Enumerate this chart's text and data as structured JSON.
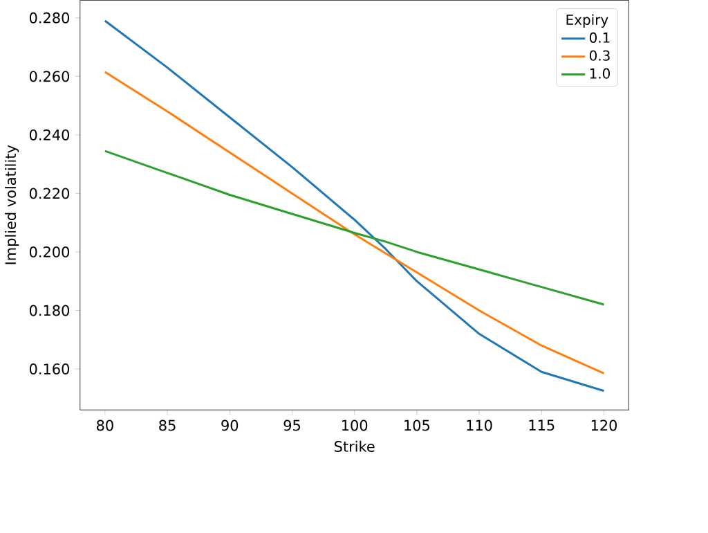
{
  "chart_data": {
    "type": "line",
    "xlabel": "Strike",
    "ylabel": "Implied volatility",
    "legend_title": "Expiry",
    "legend": "top right",
    "grid": false,
    "marker": "none",
    "line_style": "solid",
    "x": [
      80,
      85,
      90,
      95,
      100,
      102.5,
      105,
      110,
      115,
      120
    ],
    "series": [
      {
        "name": "0.1",
        "color": "#1f77b4",
        "values": [
          0.279,
          0.263,
          0.246,
          0.229,
          0.211,
          0.201,
          0.19,
          0.172,
          0.159,
          0.1525
        ]
      },
      {
        "name": "0.3",
        "color": "#ff7f0e",
        "values": [
          0.2615,
          0.248,
          0.234,
          0.22,
          0.206,
          0.1995,
          0.193,
          0.18,
          0.168,
          0.1585
        ]
      },
      {
        "name": "1.0",
        "color": "#2ca02c",
        "values": [
          0.2345,
          0.227,
          0.2195,
          0.213,
          0.2065,
          0.2035,
          0.2,
          0.194,
          0.188,
          0.182
        ]
      }
    ],
    "xlim": [
      78,
      122
    ],
    "ylim": [
      0.146,
      0.286
    ],
    "xticks": [
      80,
      85,
      90,
      95,
      100,
      105,
      110,
      115,
      120
    ],
    "yticks": [
      {
        "value": 0.16,
        "label": "0.160"
      },
      {
        "value": 0.18,
        "label": "0.180"
      },
      {
        "value": 0.2,
        "label": "0.200"
      },
      {
        "value": 0.22,
        "label": "0.220"
      },
      {
        "value": 0.24,
        "label": "0.240"
      },
      {
        "value": 0.26,
        "label": "0.260"
      },
      {
        "value": 0.28,
        "label": "0.280"
      }
    ]
  }
}
